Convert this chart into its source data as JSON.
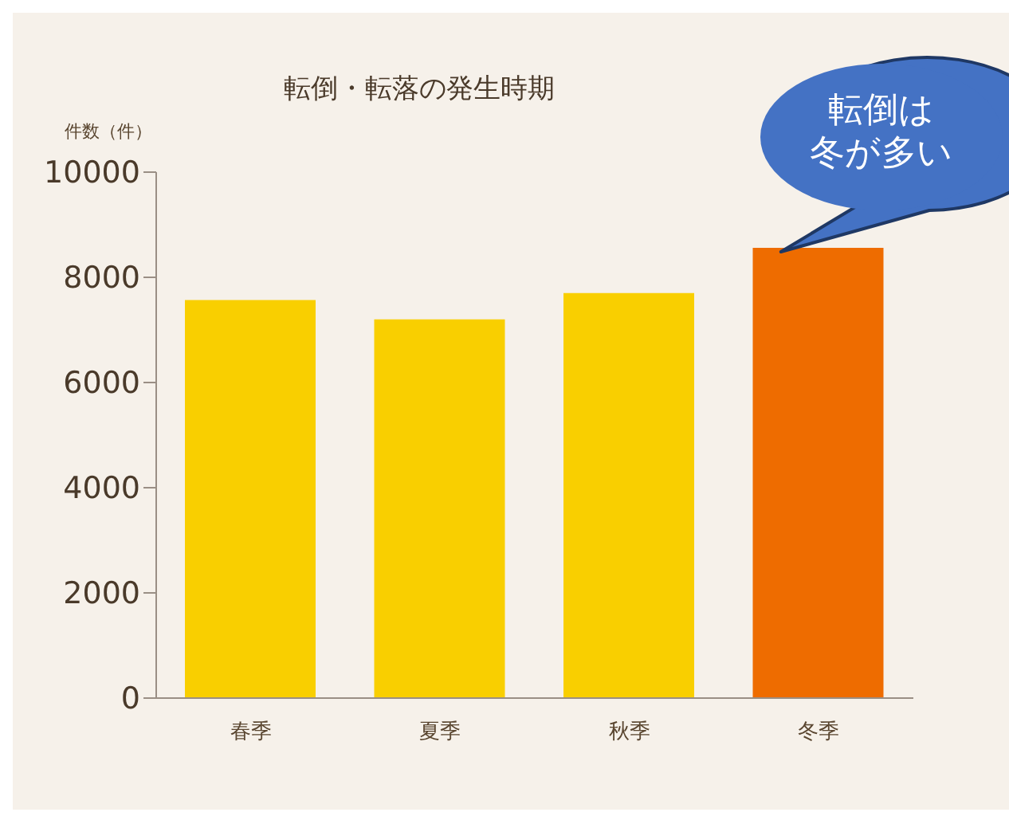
{
  "chart_data": {
    "type": "bar",
    "title": "転倒・転落の発生時期",
    "ylabel": "件数（件）",
    "categories": [
      "春季",
      "夏季",
      "秋季",
      "冬季"
    ],
    "values": [
      7570,
      7200,
      7700,
      8560
    ],
    "colors": [
      "#f9cf00",
      "#f9cf00",
      "#f9cf00",
      "#ee6c00"
    ],
    "ylim": [
      0,
      10000
    ],
    "yticks": [
      0,
      2000,
      4000,
      6000,
      8000,
      10000
    ],
    "annotations": [
      "転倒は",
      "冬が多い"
    ],
    "grid": false,
    "legend": false
  }
}
